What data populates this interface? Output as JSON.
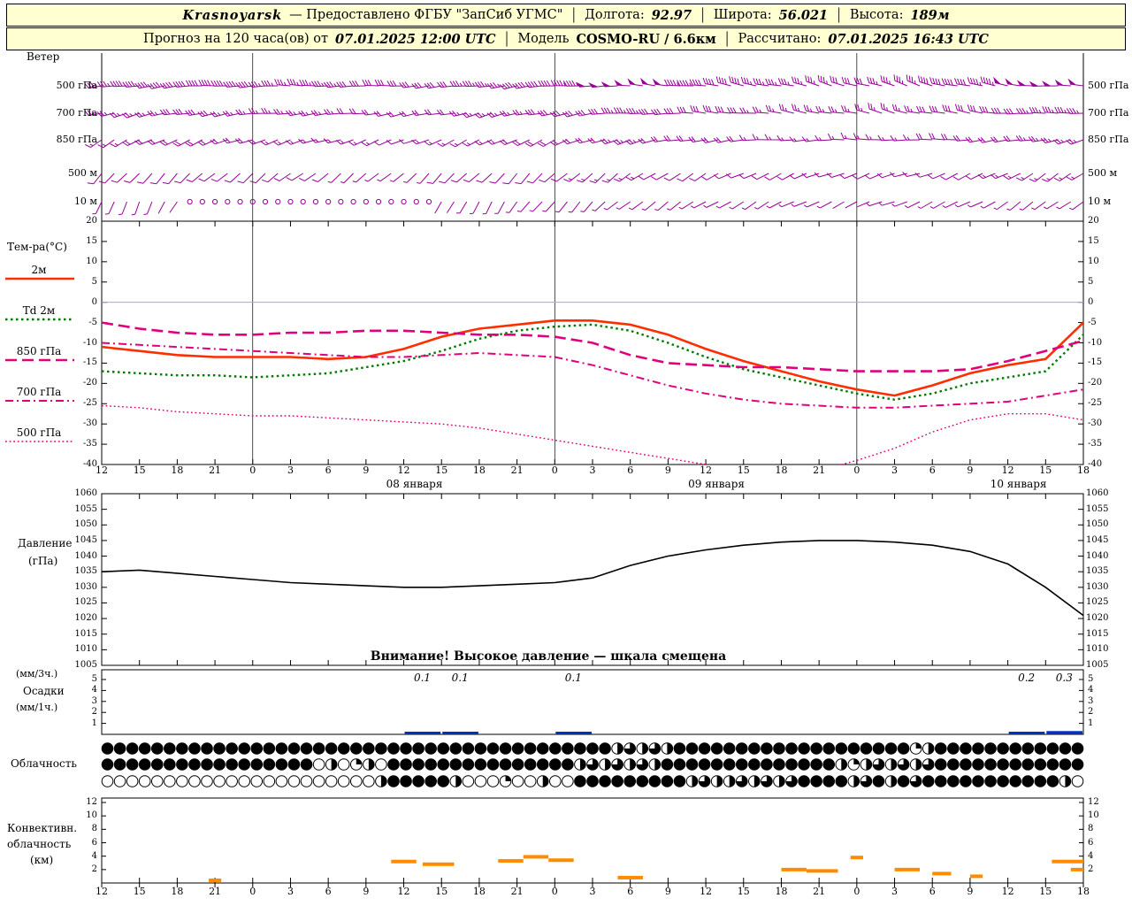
{
  "header": {
    "line1": {
      "station": "Krasnoyarsk",
      "provider": "— Предоставлено ФГБУ \"ЗапСиб УГМС\"",
      "sep": "│",
      "lon_label": "Долгота:",
      "lon_value": "92.97",
      "lat_label": "Широта:",
      "lat_value": "56.021",
      "alt_label": "Высота:",
      "alt_value": "189м"
    },
    "line2": {
      "forecast_label": "Прогноз на 120 часа(ов) от",
      "run_value": "07.01.2025 12:00 UTC",
      "model_label": "Модель",
      "model_value": "COSMO-RU / 6.6км",
      "calc_label": "Рассчитано:",
      "calc_value": "07.01.2025 16:43 UTC"
    }
  },
  "panels": {
    "wind": {
      "title": "Ветер",
      "levels": [
        "500 гПа",
        "700 гПа",
        "850 гПа",
        "500 м",
        "10 м"
      ]
    },
    "temp": {
      "title": "Тем-ра(°C)",
      "legend": [
        "2м",
        "Td 2м",
        "850 гПа",
        "700 гПа",
        "500 гПа"
      ],
      "ticks": [
        20,
        15,
        10,
        5,
        0,
        -5,
        -10,
        -15,
        -20,
        -25,
        -30,
        -35,
        -40
      ]
    },
    "pressure": {
      "title_line1": "Давление",
      "title_line2": "(гПа)",
      "ticks": [
        1060,
        1055,
        1050,
        1045,
        1040,
        1035,
        1030,
        1025,
        1020,
        1015,
        1010,
        1005
      ],
      "warning": "Внимание! Высокое давление — шкала смещена"
    },
    "precip": {
      "label_line1": "(мм/3ч.)",
      "label_line2": "Осадки",
      "label_line3": "(мм/1ч.)",
      "ticks": [
        5,
        4,
        3,
        2,
        1
      ]
    },
    "cloud": {
      "title": "Облачность"
    },
    "conv": {
      "title_line1": "Конвективн.",
      "title_line2": "облачность",
      "title_line3": "(км)",
      "ticks": [
        12,
        10,
        8,
        6,
        4,
        2
      ]
    }
  },
  "xaxis": {
    "hours": [
      "12",
      "15",
      "18",
      "21",
      "0",
      "3",
      "6",
      "9",
      "12",
      "15",
      "18",
      "21",
      "0",
      "3",
      "6",
      "9",
      "12",
      "15",
      "18",
      "21",
      "0",
      "3",
      "6",
      "9",
      "12",
      "15",
      "18"
    ],
    "dates": [
      "08 января",
      "09 января",
      "10 января"
    ],
    "date_bins": [
      8,
      16,
      24
    ]
  },
  "colors": {
    "wind": "#990099",
    "t2m": "#ff2e00",
    "td2m": "#007a00",
    "t_upper": "#e0007e",
    "pressure": "#000000",
    "precip": "#0030c0",
    "conv": "#ff8c00",
    "header_bg": "#ffffd2",
    "zero_line": "#96a8ff"
  },
  "chart_data": [
    {
      "id": "wind",
      "type": "scatter",
      "subtype": "wind-barbs",
      "title": "Ветер",
      "x_step_hours": 3,
      "units": "м/с",
      "levels": [
        {
          "name": "500 гПа",
          "dir": [
            260,
            262,
            264,
            266,
            268,
            270,
            270,
            268,
            266,
            264,
            262,
            262,
            264,
            268,
            272,
            275,
            278,
            280,
            282,
            284,
            286,
            288,
            286,
            282,
            278,
            274,
            272
          ],
          "speed": [
            18,
            20,
            21,
            20,
            19,
            18,
            17,
            16,
            15,
            16,
            17,
            19,
            21,
            23,
            24,
            23,
            21,
            19,
            18,
            17,
            16,
            17,
            19,
            21,
            23,
            24,
            25
          ]
        },
        {
          "name": "700 гПа",
          "dir": [
            255,
            256,
            258,
            260,
            262,
            264,
            264,
            262,
            260,
            258,
            256,
            256,
            258,
            262,
            266,
            270,
            273,
            276,
            278,
            280,
            282,
            284,
            282,
            278,
            274,
            270,
            268
          ],
          "speed": [
            12,
            13,
            14,
            14,
            13,
            12,
            12,
            11,
            10,
            11,
            12,
            13,
            15,
            16,
            17,
            16,
            15,
            14,
            13,
            12,
            12,
            13,
            14,
            15,
            16,
            17,
            18
          ]
        },
        {
          "name": "850 гПа",
          "dir": [
            240,
            242,
            245,
            248,
            250,
            252,
            252,
            250,
            248,
            246,
            244,
            244,
            246,
            250,
            254,
            258,
            261,
            264,
            266,
            268,
            270,
            272,
            270,
            266,
            262,
            258,
            256
          ],
          "speed": [
            8,
            9,
            10,
            10,
            9,
            8,
            8,
            7,
            6,
            7,
            8,
            9,
            10,
            11,
            12,
            11,
            10,
            9,
            8,
            8,
            7,
            8,
            9,
            10,
            11,
            12,
            12
          ]
        },
        {
          "name": "500 м",
          "dir": [
            220,
            222,
            225,
            228,
            230,
            232,
            232,
            230,
            228,
            226,
            224,
            224,
            226,
            230,
            234,
            238,
            241,
            244,
            246,
            248,
            250,
            252,
            250,
            246,
            242,
            238,
            236
          ],
          "speed": [
            5,
            5,
            6,
            6,
            5,
            4,
            4,
            3,
            3,
            4,
            5,
            5,
            6,
            7,
            7,
            6,
            6,
            5,
            5,
            4,
            4,
            5,
            5,
            6,
            7,
            7,
            8
          ]
        },
        {
          "name": "10 м",
          "dir": [
            200,
            205,
            210,
            215,
            220,
            220,
            215,
            210,
            205,
            205,
            210,
            215,
            220,
            225,
            230,
            235,
            238,
            240,
            242,
            244,
            246,
            248,
            246,
            242,
            238,
            234,
            232
          ],
          "speed": [
            2,
            2,
            1,
            0,
            0,
            0,
            0,
            0,
            0,
            1,
            2,
            2,
            3,
            3,
            3,
            2,
            2,
            2,
            2,
            2,
            1,
            2,
            2,
            3,
            3,
            3,
            3
          ]
        }
      ]
    },
    {
      "id": "temp",
      "type": "line",
      "title": "Тем-ра(°C)",
      "ylim": [
        -40,
        20
      ],
      "x_step_hours": 3,
      "series": [
        {
          "name": "2м",
          "color": "#ff2e00",
          "style": "solid",
          "values": [
            -11,
            -12,
            -13,
            -13.5,
            -13.5,
            -13.5,
            -14,
            -13.5,
            -11.5,
            -8.5,
            -6.5,
            -5.5,
            -4.5,
            -4.5,
            -5.5,
            -8,
            -11.5,
            -14.5,
            -17,
            -19.5,
            -21.5,
            -23,
            -20.5,
            -17.5,
            -15.5,
            -14,
            -5
          ]
        },
        {
          "name": "Td 2м",
          "color": "#007a00",
          "style": "dotted",
          "values": [
            -17,
            -17.5,
            -18,
            -18,
            -18.5,
            -18,
            -17.5,
            -16,
            -14.5,
            -12,
            -9,
            -7,
            -6,
            -5.5,
            -7,
            -10,
            -13.5,
            -16.5,
            -18.5,
            -20.5,
            -22.5,
            -24,
            -22.5,
            -20,
            -18.5,
            -17,
            -8
          ]
        },
        {
          "name": "850 гПа",
          "color": "#e0007e",
          "style": "dashed",
          "values": [
            -5,
            -6.5,
            -7.5,
            -8,
            -8,
            -7.5,
            -7.5,
            -7,
            -7,
            -7.5,
            -8,
            -8,
            -8.5,
            -10,
            -13,
            -15,
            -15.5,
            -16,
            -16,
            -16.5,
            -17,
            -17,
            -17,
            -16.5,
            -14.5,
            -12,
            -9.5
          ]
        },
        {
          "name": "700 гПа",
          "color": "#e0007e",
          "style": "dashdot",
          "values": [
            -10,
            -10.5,
            -11,
            -11.5,
            -12,
            -12.5,
            -13,
            -13.5,
            -13.5,
            -13,
            -12.5,
            -13,
            -13.5,
            -15.5,
            -18,
            -20.5,
            -22.5,
            -24,
            -25,
            -25.5,
            -26,
            -26,
            -25.5,
            -25,
            -24.5,
            -23,
            -21.5
          ]
        },
        {
          "name": "500 гПа",
          "color": "#e0007e",
          "style": "fine-dotted",
          "values": [
            -25.5,
            -26,
            -27,
            -27.5,
            -28,
            -28,
            -28.5,
            -29,
            -29.5,
            -30,
            -31,
            -32.5,
            -34,
            -35.5,
            -37,
            -38.5,
            -40,
            -41.5,
            -42,
            -41.5,
            -39,
            -36,
            -32,
            -29,
            -27.5,
            -27.5,
            -29
          ]
        }
      ]
    },
    {
      "id": "pressure",
      "type": "line",
      "title": "Давление (гПа)",
      "ylim": [
        1005,
        1060
      ],
      "x_step_hours": 3,
      "values": [
        1035,
        1035.5,
        1034.5,
        1033.5,
        1032.5,
        1031.5,
        1031,
        1030.5,
        1030,
        1030,
        1030.5,
        1031,
        1031.5,
        1033,
        1037,
        1040,
        1042,
        1043.5,
        1044.5,
        1045,
        1045,
        1044.5,
        1043.5,
        1041.5,
        1037.5,
        1030,
        1021
      ],
      "note": "Внимание! Высокое давление — шкала смещена"
    },
    {
      "id": "precip",
      "type": "bar",
      "title": "Осадки (мм/3ч., мм/1ч.)",
      "ylim": [
        0,
        5
      ],
      "bin_hours": 3,
      "values_mm_3h": [
        0,
        0,
        0,
        0,
        0,
        0,
        0,
        0,
        0.1,
        0.1,
        0,
        0,
        0.1,
        0,
        0,
        0,
        0,
        0,
        0,
        0,
        0,
        0,
        0,
        0,
        0.2,
        0.3
      ],
      "labels": [
        {
          "bin": 8,
          "text": "0.1"
        },
        {
          "bin": 9,
          "text": "0.1"
        },
        {
          "bin": 12,
          "text": "0.1"
        },
        {
          "bin": 24,
          "text": "0.2"
        },
        {
          "bin": 25,
          "text": "0.3"
        }
      ]
    },
    {
      "id": "cloud",
      "type": "heatmap",
      "subtype": "cloud-cover-symbols",
      "title": "Облачность",
      "rows": 3,
      "scale": "quarters 0-4",
      "hourly_rows": [
        "4444444444444444444444444444444444444444423232444444444444444444412444444444444",
        "4444444444444444402012044444444444444423232324444444444444421232323444444444444",
        "0000000000000000000000244444200010020044444444423223232344442342434444444444420"
      ]
    },
    {
      "id": "conv",
      "type": "bar",
      "subtype": "segments",
      "title": "Конвективн. облачность (км)",
      "ylim": [
        0,
        12
      ],
      "segments_h0_h1_km": [
        [
          8.5,
          9.5,
          0.4
        ],
        [
          23,
          25,
          3.2
        ],
        [
          25.5,
          28,
          2.8
        ],
        [
          31.5,
          33.5,
          3.3
        ],
        [
          33.5,
          35.5,
          3.9
        ],
        [
          35.5,
          37.5,
          3.4
        ],
        [
          41,
          43,
          0.8
        ],
        [
          54,
          56,
          2.0
        ],
        [
          56,
          58.5,
          1.8
        ],
        [
          59.5,
          60.5,
          3.8
        ],
        [
          63,
          65,
          2.0
        ],
        [
          66,
          67.5,
          1.4
        ],
        [
          69,
          70,
          1.0
        ],
        [
          75.5,
          78,
          3.2
        ],
        [
          77,
          78,
          2.0
        ]
      ]
    }
  ]
}
